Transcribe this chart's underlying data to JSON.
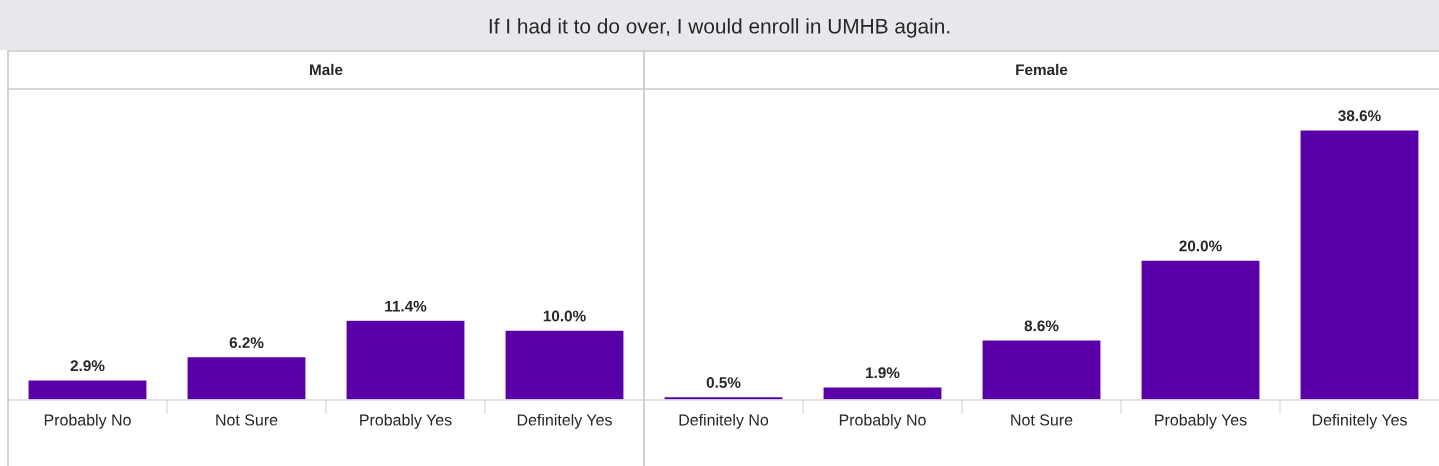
{
  "chart_data": [
    {
      "type": "bar",
      "title": "Male",
      "annotations": [
        "If I had it to do over, I would enroll in UMHB again."
      ],
      "categories": [
        "Probably No",
        "Not Sure",
        "Probably Yes",
        "Definitely Yes"
      ],
      "values": [
        2.9,
        6.2,
        11.4,
        10.0
      ],
      "value_labels": [
        "2.9%",
        "6.2%",
        "11.4%",
        "10.0%"
      ],
      "color": "#5a00a8"
    },
    {
      "type": "bar",
      "title": "Female",
      "categories": [
        "Definitely No",
        "Probably No",
        "Not Sure",
        "Probably Yes",
        "Definitely Yes"
      ],
      "values": [
        0.5,
        1.9,
        8.6,
        20.0,
        38.6
      ],
      "value_labels": [
        "0.5%",
        "1.9%",
        "8.6%",
        "20.0%",
        "38.6%"
      ],
      "color": "#5a00a8"
    }
  ]
}
